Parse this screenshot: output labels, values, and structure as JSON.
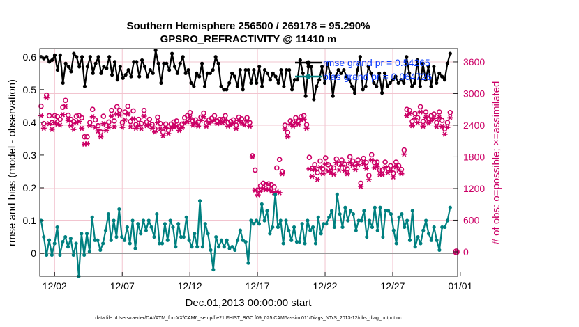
{
  "chart_data": {
    "type": "line",
    "title_line1": "Southern Hemisphere 256500 / 269178 = 95.290%",
    "title_line2": "GPSRO_REFRACTIVITY @ 11410 m",
    "xlabel": "Dec.01,2013 00:00:00 start",
    "ylabel_left": "rmse and bias (model - observation)",
    "ylabel_right": "# of obs: o=possible; ×=assimilated",
    "footer": "data file: /Users/raeder/DAI/ATM_forcXX/CAM6_setup/f.e21.FHIST_BGC.f09_025.CAM6assim.011/Diags_NTrS_2013-12/obs_diag_output.nc",
    "xlim": [
      0.4,
      31.3
    ],
    "ylim_left": [
      -0.07,
      0.625
    ],
    "ylim_right": [
      -462,
      3850
    ],
    "x_tick_positions": [
      1.5,
      6.5,
      11.5,
      16.5,
      21.5,
      26.5,
      31.5
    ],
    "x_tick_labels": [
      "12/02",
      "12/07",
      "12/12",
      "12/17",
      "12/22",
      "12/27",
      "01/01"
    ],
    "y_left_ticks": [
      "0",
      "0.1",
      "0.2",
      "0.3",
      "0.4",
      "0.5",
      "0.6"
    ],
    "y_right_ticks": [
      "0",
      "600",
      "1200",
      "1800",
      "2400",
      "3000",
      "3600"
    ],
    "colors": {
      "rmse": "#000000",
      "bias": "#008080",
      "obs": "#cc0066",
      "legend_text": "#0a3cff"
    },
    "legend": [
      {
        "label": "rmse grand pr = 0.54265"
      },
      {
        "label": "bias grand pr = 0.064726"
      }
    ],
    "series": [
      {
        "name": "rmse",
        "axis": "left",
        "values": [
          0.6,
          0.595,
          0.6,
          0.585,
          0.59,
          0.605,
          0.56,
          0.605,
          0.52,
          0.58,
          0.57,
          0.555,
          0.61,
          0.6,
          0.57,
          0.6,
          0.51,
          0.57,
          0.6,
          0.55,
          0.58,
          0.6,
          0.55,
          0.57,
          0.565,
          0.6,
          0.545,
          0.585,
          0.53,
          0.57,
          0.535,
          0.545,
          0.56,
          0.54,
          0.585,
          0.585,
          0.54,
          0.59,
          0.57,
          0.54,
          0.56,
          0.55,
          0.62,
          0.58,
          0.52,
          0.58,
          0.58,
          0.56,
          0.61,
          0.57,
          0.55,
          0.58,
          0.6,
          0.55,
          0.56,
          0.52,
          0.51,
          0.55,
          0.54,
          0.58,
          0.51,
          0.55,
          0.55,
          0.56,
          0.6,
          0.58,
          0.51,
          0.5,
          0.5,
          0.52,
          0.55,
          0.54,
          0.51,
          0.56,
          0.5,
          0.56,
          0.56,
          0.52,
          0.56,
          0.52,
          0.57,
          0.51,
          0.56,
          0.55,
          0.53,
          0.55,
          0.54,
          0.52,
          0.56,
          0.51,
          0.56,
          0.56,
          0.5,
          0.53,
          0.53,
          0.59,
          0.55,
          0.48,
          0.57,
          0.57,
          0.47,
          0.51,
          0.53,
          0.57,
          0.52,
          0.58,
          0.55,
          0.48,
          0.54,
          0.56,
          0.55,
          0.56,
          0.54,
          0.53,
          0.51,
          0.49,
          0.56,
          0.6,
          0.5,
          0.51,
          0.57,
          0.55,
          0.52,
          0.51,
          0.55,
          0.49,
          0.55,
          0.51,
          0.52,
          0.53,
          0.54,
          0.52,
          0.53,
          0.52,
          0.6,
          0.55,
          0.51,
          0.52,
          0.59,
          0.51,
          0.58,
          0.53,
          0.57,
          0.51,
          0.57,
          0.52,
          0.55,
          0.54,
          0.53,
          0.58,
          0.61
        ]
      },
      {
        "name": "bias",
        "axis": "left",
        "values": [
          0.1,
          0.05,
          -0.005,
          0.04,
          -0.005,
          0.03,
          0.08,
          -0.005,
          0.035,
          0.05,
          0.02,
          0.045,
          -0.005,
          0.03,
          -0.07,
          0.06,
          -0.005,
          0.06,
          0.005,
          0.11,
          0.04,
          0.04,
          0.01,
          0.03,
          0.07,
          0.12,
          0.04,
          0.1,
          0.05,
          0.135,
          0.05,
          0.04,
          0.08,
          0.03,
          0.1,
          0.015,
          0.09,
          0.06,
          0.1,
          0.07,
          0.1,
          0.08,
          0.05,
          0.12,
          0.03,
          0.03,
          0.09,
          0.04,
          0.1,
          0.08,
          0.02,
          0.09,
          0.05,
          0.05,
          0.11,
          0.04,
          0.02,
          0.06,
          0.02,
          0.16,
          0.02,
          0.09,
          0.06,
          0.01,
          -0.05,
          0.05,
          0.02,
          0.04,
          0.02,
          0.04,
          0.015,
          0.02,
          0.01,
          0.04,
          0.07,
          0.04,
          0.035,
          -0.03,
          0.1,
          0.09,
          0.1,
          0.09,
          0.15,
          0.1,
          0.13,
          0.06,
          0.08,
          0.18,
          0.08,
          0.1,
          0.03,
          0.1,
          0.07,
          0.04,
          0.08,
          0.035,
          0.035,
          0.09,
          0.03,
          0.1,
          0.07,
          0.08,
          0.03,
          0.11,
          0.06,
          0.09,
          0.09,
          0.11,
          0.13,
          0.08,
          0.18,
          0.12,
          0.08,
          0.14,
          0.1,
          0.13,
          0.12,
          0.07,
          0.1,
          0.1,
          0.13,
          0.05,
          0.1,
          0.08,
          0.14,
          0.07,
          0.14,
          0.05,
          0.13,
          0.13,
          0.12,
          0.07,
          0.03,
          0.11,
          0.12,
          0.08,
          0.1,
          0.04,
          0.13,
          0.02,
          0.05,
          0.03,
          0.07,
          0.1,
          0.06,
          0.04,
          0.08,
          0.04,
          0.01,
          0.08,
          0.08,
          0.1,
          0.14
        ]
      },
      {
        "name": "obs_possible",
        "axis": "right",
        "values": [
          2760,
          2430,
          2970,
          2580,
          2450,
          2580,
          2560,
          2510,
          2740,
          2870,
          2590,
          2510,
          2470,
          2570,
          2580,
          2540,
          2180,
          2180,
          2450,
          2700,
          2500,
          2390,
          2270,
          2570,
          2400,
          2460,
          2680,
          2480,
          2750,
          2680,
          2450,
          2650,
          2760,
          2470,
          2670,
          2410,
          2510,
          2430,
          2680,
          2460,
          2510,
          2410,
          2330,
          2550,
          2430,
          2270,
          2420,
          2300,
          2420,
          2460,
          2480,
          2370,
          2420,
          2540,
          2580,
          2640,
          2480,
          2500,
          2460,
          2550,
          2630,
          2440,
          2500,
          2530,
          2580,
          2480,
          2510,
          2510,
          2580,
          2450,
          2470,
          2500,
          2400,
          2550,
          2520,
          2460,
          2540,
          2450,
          1820,
          1550,
          1170,
          1250,
          1300,
          1280,
          1290,
          1270,
          1230,
          1590,
          1750,
          1520,
          2400,
          2260,
          2480,
          2460,
          2540,
          2480,
          2560,
          2580,
          2410,
          1790,
          1580,
          1650,
          1500,
          1720,
          1570,
          1780,
          1650,
          1600,
          1590,
          1760,
          1660,
          1740,
          1660,
          1570,
          1800,
          1720,
          1660,
          1740,
          1300,
          1770,
          1690,
          1450,
          1840,
          1690,
          1700,
          1550,
          1550,
          1700,
          1580,
          1630,
          1490,
          1700,
          1630,
          1560,
          1930,
          2700,
          2680,
          2470,
          2620,
          2540,
          2750,
          2470,
          2650,
          2520,
          2580,
          2610,
          2450,
          2650,
          2490,
          2330,
          2450,
          2640
        ]
      },
      {
        "name": "obs_assimilated",
        "axis": "right",
        "values": [
          2580,
          2340,
          2920,
          2430,
          2320,
          2450,
          2420,
          2400,
          2600,
          2760,
          2490,
          2390,
          2320,
          2450,
          2470,
          2340,
          2040,
          2050,
          2390,
          2560,
          2360,
          2290,
          2180,
          2430,
          2300,
          2360,
          2570,
          2370,
          2610,
          2590,
          2360,
          2500,
          2610,
          2370,
          2520,
          2340,
          2390,
          2330,
          2570,
          2390,
          2410,
          2340,
          2270,
          2450,
          2330,
          2200,
          2350,
          2240,
          2340,
          2370,
          2380,
          2300,
          2350,
          2440,
          2470,
          2540,
          2400,
          2440,
          2380,
          2490,
          2560,
          2380,
          2440,
          2470,
          2500,
          2430,
          2450,
          2450,
          2500,
          2380,
          2400,
          2440,
          2340,
          2490,
          2440,
          2400,
          2480,
          2380,
          1800,
          1170,
          1080,
          1150,
          1200,
          1180,
          1180,
          1150,
          1120,
          1140,
          1120,
          1480,
          2330,
          2180,
          2420,
          2380,
          2450,
          2420,
          2500,
          2510,
          2340,
          1570,
          1430,
          1560,
          1370,
          1600,
          1480,
          1660,
          1530,
          1500,
          1470,
          1690,
          1550,
          1640,
          1540,
          1480,
          1690,
          1640,
          1560,
          1650,
          1240,
          1670,
          1580,
          1370,
          1740,
          1590,
          1620,
          1460,
          1460,
          1600,
          1500,
          1540,
          1420,
          1610,
          1550,
          1480,
          1850,
          2580,
          2620,
          2390,
          2530,
          2450,
          2650,
          2380,
          2550,
          2440,
          2490,
          2530,
          2370,
          2550,
          2380,
          2230,
          2360,
          2540
        ]
      }
    ],
    "axis_end_marker": {
      "series": "obs",
      "x": 31.2,
      "value": 0
    }
  }
}
